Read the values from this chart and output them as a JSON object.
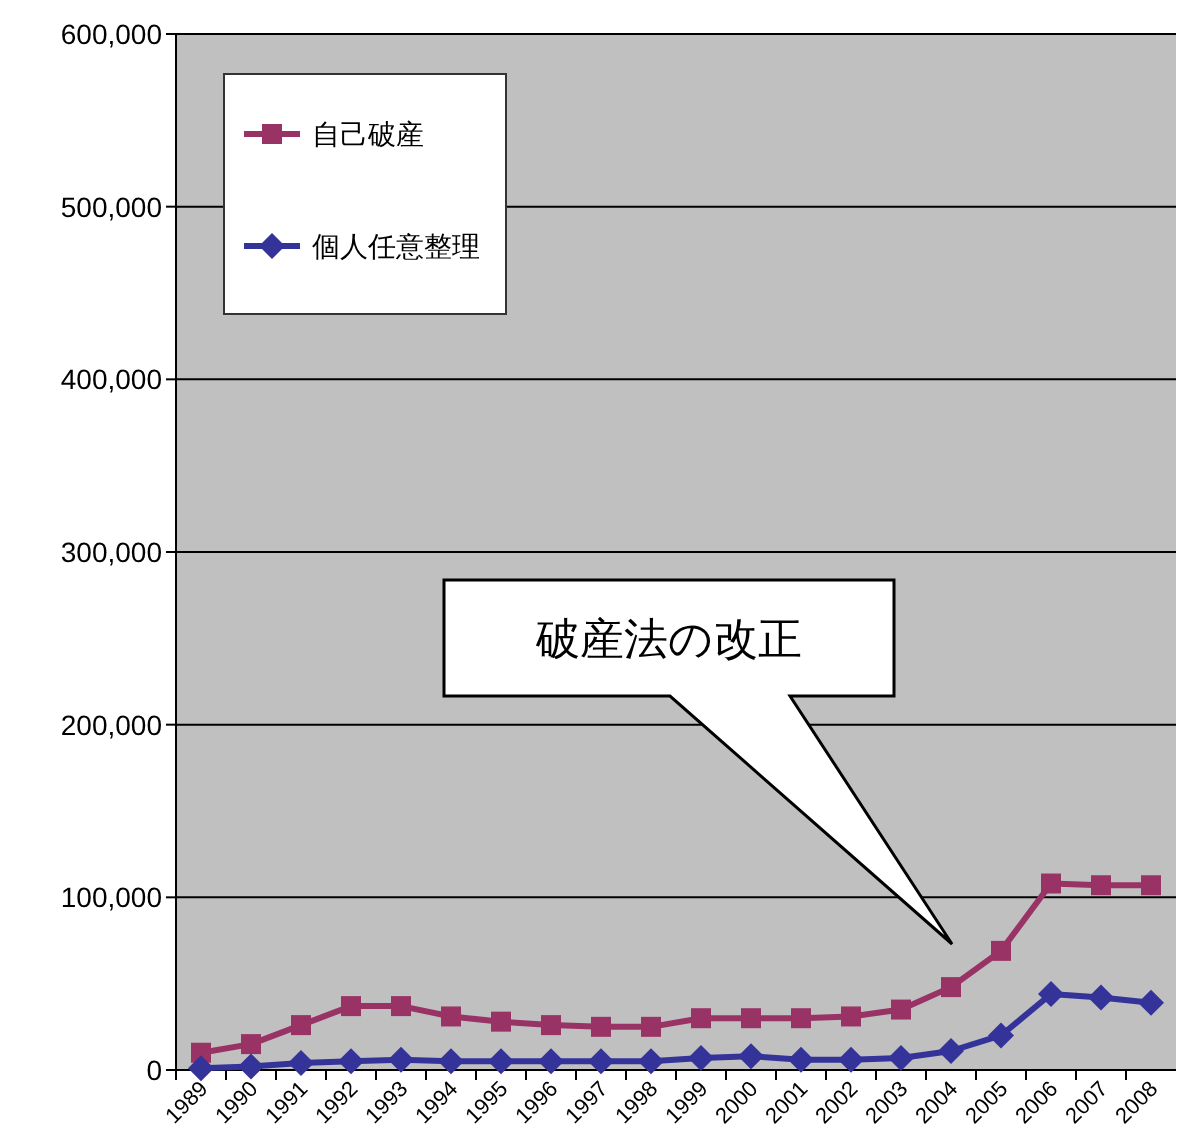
{
  "chart_data": {
    "type": "line",
    "categories": [
      "1989",
      "1990",
      "1991",
      "1992",
      "1993",
      "1994",
      "1995",
      "1996",
      "1997",
      "1998",
      "1999",
      "2000",
      "2001",
      "2002",
      "2003",
      "2004",
      "2005",
      "2006",
      "2007",
      "2008"
    ],
    "series": [
      {
        "name": "自己破産",
        "color": "#993366",
        "marker": "square",
        "values": [
          10000,
          15000,
          26000,
          37000,
          37000,
          31000,
          28000,
          26000,
          25000,
          25000,
          30000,
          30000,
          30000,
          31000,
          35000,
          48000,
          69000,
          108000,
          107000,
          107000
        ]
      },
      {
        "name": "個人任意整理",
        "color": "#333399",
        "marker": "diamond",
        "values": [
          1000,
          2000,
          4000,
          5000,
          6000,
          5000,
          5000,
          5000,
          5000,
          5000,
          7000,
          8000,
          6000,
          6000,
          7000,
          11000,
          20000,
          44000,
          42000,
          39000
        ]
      }
    ],
    "ylim": [
      0,
      600000
    ],
    "yticks": [
      {
        "value": 0,
        "label": "0"
      },
      {
        "value": 100000,
        "label": "100,000"
      },
      {
        "value": 200000,
        "label": "200,000"
      },
      {
        "value": 300000,
        "label": "300,000"
      },
      {
        "value": 400000,
        "label": "400,000"
      },
      {
        "value": 500000,
        "label": "500,000"
      },
      {
        "value": 600000,
        "label": "600,000"
      }
    ],
    "grid": "y",
    "legend": "top left",
    "line_style": "solid",
    "annotations": [
      "破産法の改正"
    ]
  }
}
